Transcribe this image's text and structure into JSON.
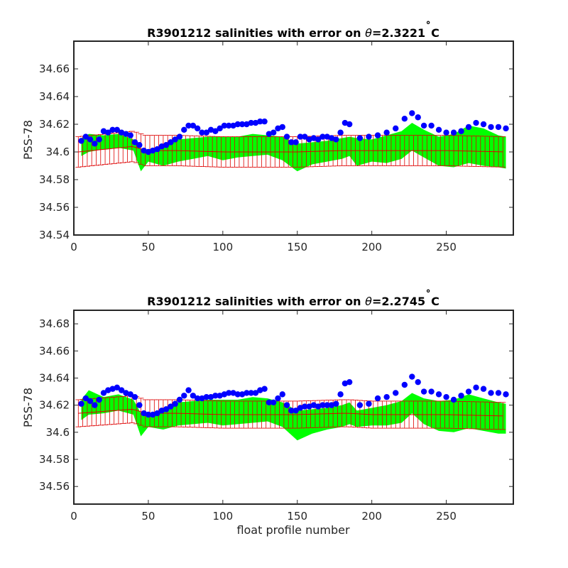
{
  "colors": {
    "band": "#00ff00",
    "errorbar": "#dd0000",
    "points": "#0000ff",
    "axes": "#262626"
  },
  "chart_data": [
    {
      "type": "scatter",
      "title": "R3901212 salinities with error on θ=2.3221˚C",
      "title_prefix": "R3901212 salinities with error on ",
      "title_theta": "θ",
      "title_value": "=2.3221",
      "title_deg": "˚",
      "title_unit": "C",
      "xlabel": "",
      "ylabel": "PSS-78",
      "xlim": [
        0,
        295
      ],
      "ylim": [
        34.54,
        34.68
      ],
      "xticks": [
        0,
        50,
        100,
        150,
        200,
        250
      ],
      "xtick_labels": [
        "0",
        "50",
        "100",
        "150",
        "200",
        "250"
      ],
      "yticks": [
        34.54,
        34.56,
        34.58,
        34.6,
        34.62,
        34.64,
        34.66
      ],
      "ytick_labels": [
        "34.54",
        "34.56",
        "34.58",
        "34.6",
        "34.62",
        "34.64",
        "34.66"
      ],
      "grid": false,
      "series": [
        {
          "role": "mapped salinity band",
          "kind": "area",
          "x": [
            5,
            10,
            20,
            30,
            40,
            45,
            50,
            60,
            70,
            80,
            90,
            100,
            110,
            120,
            130,
            140,
            150,
            160,
            170,
            180,
            185,
            190,
            200,
            210,
            220,
            227,
            235,
            245,
            255,
            265,
            275,
            285,
            290
          ],
          "upper": [
            34.61,
            34.613,
            34.612,
            34.613,
            34.609,
            34.602,
            34.6,
            34.604,
            34.609,
            34.61,
            34.611,
            34.611,
            34.611,
            34.613,
            34.612,
            34.611,
            34.606,
            34.607,
            34.608,
            34.61,
            34.611,
            34.61,
            34.609,
            34.612,
            34.615,
            34.621,
            34.616,
            34.611,
            34.613,
            34.619,
            34.617,
            34.612,
            34.611
          ],
          "lower": [
            34.597,
            34.6,
            34.602,
            34.603,
            34.601,
            34.586,
            34.593,
            34.59,
            34.593,
            34.595,
            34.597,
            34.594,
            34.596,
            34.597,
            34.598,
            34.594,
            34.586,
            34.591,
            34.593,
            34.595,
            34.597,
            34.59,
            34.593,
            34.592,
            34.595,
            34.601,
            34.596,
            34.59,
            34.589,
            34.592,
            34.59,
            34.589,
            34.588
          ]
        },
        {
          "role": "mapped salinity with error",
          "kind": "errorbar",
          "x_start": 3,
          "x_step": 3,
          "x_end": 290,
          "centre_x": [
            3,
            40,
            48,
            60,
            70,
            100,
            150,
            180,
            185,
            200,
            220,
            250,
            290
          ],
          "centre": [
            34.6,
            34.604,
            34.601,
            34.601,
            34.601,
            34.6,
            34.6,
            34.601,
            34.601,
            34.601,
            34.601,
            34.601,
            34.6
          ],
          "error": 0.011
        },
        {
          "role": "float salinity",
          "kind": "scatter",
          "x": [
            5,
            8,
            11,
            14,
            17,
            20,
            23,
            26,
            29,
            32,
            35,
            38,
            41,
            44,
            47,
            50,
            53,
            56,
            59,
            62,
            65,
            68,
            71,
            74,
            77,
            80,
            83,
            86,
            89,
            92,
            95,
            98,
            101,
            104,
            107,
            110,
            113,
            116,
            119,
            122,
            125,
            128,
            131,
            134,
            137,
            140,
            143,
            146,
            149,
            152,
            155,
            158,
            161,
            164,
            167,
            170,
            173,
            176,
            179,
            182,
            185,
            192,
            198,
            204,
            210,
            216,
            222,
            227,
            231,
            235,
            240,
            245,
            250,
            255,
            260,
            265,
            270,
            275,
            280,
            285,
            290
          ],
          "y": [
            34.608,
            34.611,
            34.609,
            34.606,
            34.609,
            34.615,
            34.614,
            34.616,
            34.616,
            34.614,
            34.613,
            34.612,
            34.607,
            34.605,
            34.601,
            34.6,
            34.601,
            34.602,
            34.604,
            34.605,
            34.607,
            34.609,
            34.611,
            34.616,
            34.619,
            34.619,
            34.617,
            34.614,
            34.614,
            34.616,
            34.615,
            34.617,
            34.619,
            34.619,
            34.619,
            34.62,
            34.62,
            34.62,
            34.621,
            34.621,
            34.622,
            34.622,
            34.613,
            34.614,
            34.617,
            34.618,
            34.611,
            34.607,
            34.607,
            34.611,
            34.611,
            34.609,
            34.61,
            34.609,
            34.611,
            34.611,
            34.61,
            34.609,
            34.614,
            34.621,
            34.62,
            34.61,
            34.611,
            34.612,
            34.614,
            34.617,
            34.624,
            34.628,
            34.625,
            34.619,
            34.619,
            34.616,
            34.614,
            34.614,
            34.615,
            34.618,
            34.621,
            34.62,
            34.618,
            34.618,
            34.617
          ]
        }
      ]
    },
    {
      "type": "scatter",
      "title": "R3901212 salinities with error on θ=2.2745˚C",
      "title_prefix": "R3901212 salinities with error on ",
      "title_theta": "θ",
      "title_value": "=2.2745",
      "title_deg": "˚",
      "title_unit": "C",
      "xlabel": "float profile number",
      "ylabel": "PSS-78",
      "xlim": [
        0,
        295
      ],
      "ylim": [
        34.547,
        34.69
      ],
      "xticks": [
        0,
        50,
        100,
        150,
        200,
        250
      ],
      "xtick_labels": [
        "0",
        "50",
        "100",
        "150",
        "200",
        "250"
      ],
      "yticks": [
        34.56,
        34.58,
        34.6,
        34.62,
        34.64,
        34.66,
        34.68
      ],
      "ytick_labels": [
        "34.56",
        "34.58",
        "34.6",
        "34.62",
        "34.64",
        "34.66",
        "34.68"
      ],
      "grid": false,
      "series": [
        {
          "role": "mapped salinity band",
          "kind": "area",
          "x": [
            5,
            10,
            20,
            30,
            40,
            45,
            50,
            60,
            70,
            80,
            90,
            100,
            110,
            120,
            130,
            140,
            150,
            160,
            170,
            180,
            185,
            190,
            200,
            210,
            220,
            227,
            235,
            245,
            255,
            265,
            275,
            285,
            290
          ],
          "upper": [
            34.624,
            34.631,
            34.626,
            34.628,
            34.624,
            34.614,
            34.613,
            34.617,
            34.622,
            34.623,
            34.624,
            34.624,
            34.624,
            34.626,
            34.625,
            34.622,
            34.616,
            34.617,
            34.618,
            34.62,
            34.622,
            34.616,
            34.618,
            34.62,
            34.623,
            34.629,
            34.625,
            34.623,
            34.624,
            34.628,
            34.625,
            34.622,
            34.621
          ],
          "lower": [
            34.609,
            34.613,
            34.614,
            34.616,
            34.613,
            34.597,
            34.604,
            34.602,
            34.605,
            34.606,
            34.607,
            34.605,
            34.606,
            34.607,
            34.608,
            34.604,
            34.594,
            34.599,
            34.602,
            34.604,
            34.606,
            34.604,
            34.605,
            34.605,
            34.607,
            34.614,
            34.606,
            34.601,
            34.6,
            34.603,
            34.601,
            34.599,
            34.599
          ]
        },
        {
          "role": "mapped salinity with error",
          "kind": "errorbar",
          "x_start": 3,
          "x_step": 3,
          "x_end": 290,
          "centre_x": [
            3,
            40,
            48,
            60,
            70,
            100,
            150,
            180,
            185,
            200,
            220,
            250,
            290
          ],
          "centre": [
            34.614,
            34.617,
            34.614,
            34.614,
            34.614,
            34.613,
            34.613,
            34.614,
            34.614,
            34.613,
            34.613,
            34.613,
            34.612
          ],
          "error": 0.01
        },
        {
          "role": "float salinity",
          "kind": "scatter",
          "x": [
            5,
            8,
            11,
            14,
            17,
            20,
            23,
            26,
            29,
            32,
            35,
            38,
            41,
            44,
            47,
            50,
            53,
            56,
            59,
            62,
            65,
            68,
            71,
            74,
            77,
            80,
            83,
            86,
            89,
            92,
            95,
            98,
            101,
            104,
            107,
            110,
            113,
            116,
            119,
            122,
            125,
            128,
            131,
            134,
            137,
            140,
            143,
            146,
            149,
            152,
            155,
            158,
            161,
            164,
            167,
            170,
            173,
            176,
            179,
            182,
            185,
            192,
            198,
            204,
            210,
            216,
            222,
            227,
            231,
            235,
            240,
            245,
            250,
            255,
            260,
            265,
            270,
            275,
            280,
            285,
            290
          ],
          "y": [
            34.621,
            34.625,
            34.623,
            34.62,
            34.624,
            34.629,
            34.631,
            34.632,
            34.633,
            34.631,
            34.629,
            34.628,
            34.626,
            34.62,
            34.614,
            34.613,
            34.613,
            34.614,
            34.616,
            34.617,
            34.619,
            34.621,
            34.624,
            34.627,
            34.631,
            34.627,
            34.625,
            34.625,
            34.626,
            34.626,
            34.627,
            34.627,
            34.628,
            34.629,
            34.629,
            34.628,
            34.628,
            34.629,
            34.629,
            34.629,
            34.631,
            34.632,
            34.622,
            34.622,
            34.625,
            34.628,
            34.62,
            34.616,
            34.616,
            34.618,
            34.619,
            34.619,
            34.62,
            34.619,
            34.62,
            34.62,
            34.62,
            34.621,
            34.628,
            34.636,
            34.637,
            34.62,
            34.621,
            34.625,
            34.626,
            34.629,
            34.635,
            34.641,
            34.637,
            34.63,
            34.63,
            34.628,
            34.626,
            34.624,
            34.627,
            34.63,
            34.633,
            34.632,
            34.629,
            34.629,
            34.628
          ]
        }
      ]
    }
  ]
}
